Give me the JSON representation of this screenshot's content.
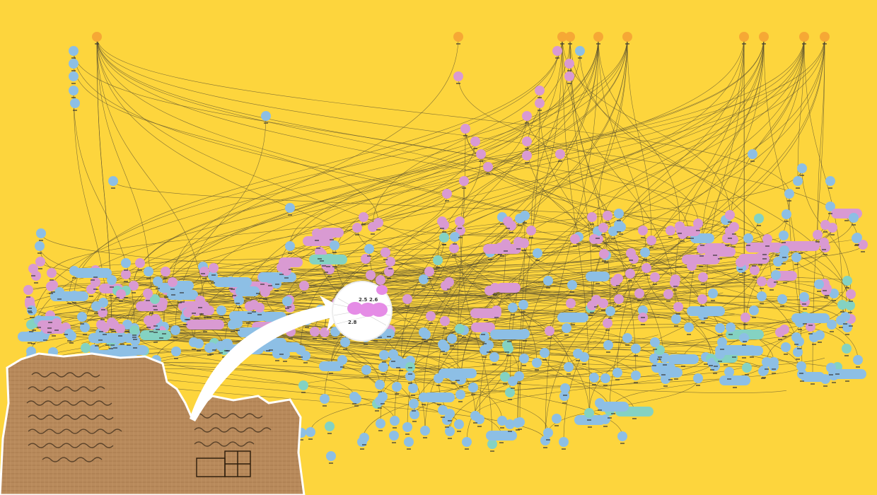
{
  "figure": {
    "theme": "proposition dependency graph (Euclid's Elements)",
    "colors": {
      "background": "#FDD53D",
      "axiom_node": "#F6A835",
      "proposition_node": "#D99AD2",
      "construction_node": "#8DBFE5",
      "teal_node": "#84D2C2",
      "edge": "#5a5030",
      "highlight_node": "#E58CE6",
      "papyrus": "#B88A5C"
    },
    "zoom_labels": [
      "2.5",
      "2.6",
      "2.8"
    ],
    "papyrus_caption_icon": "papyrus-fragment-icon",
    "arrow_icon": "curved-arrow-icon"
  }
}
